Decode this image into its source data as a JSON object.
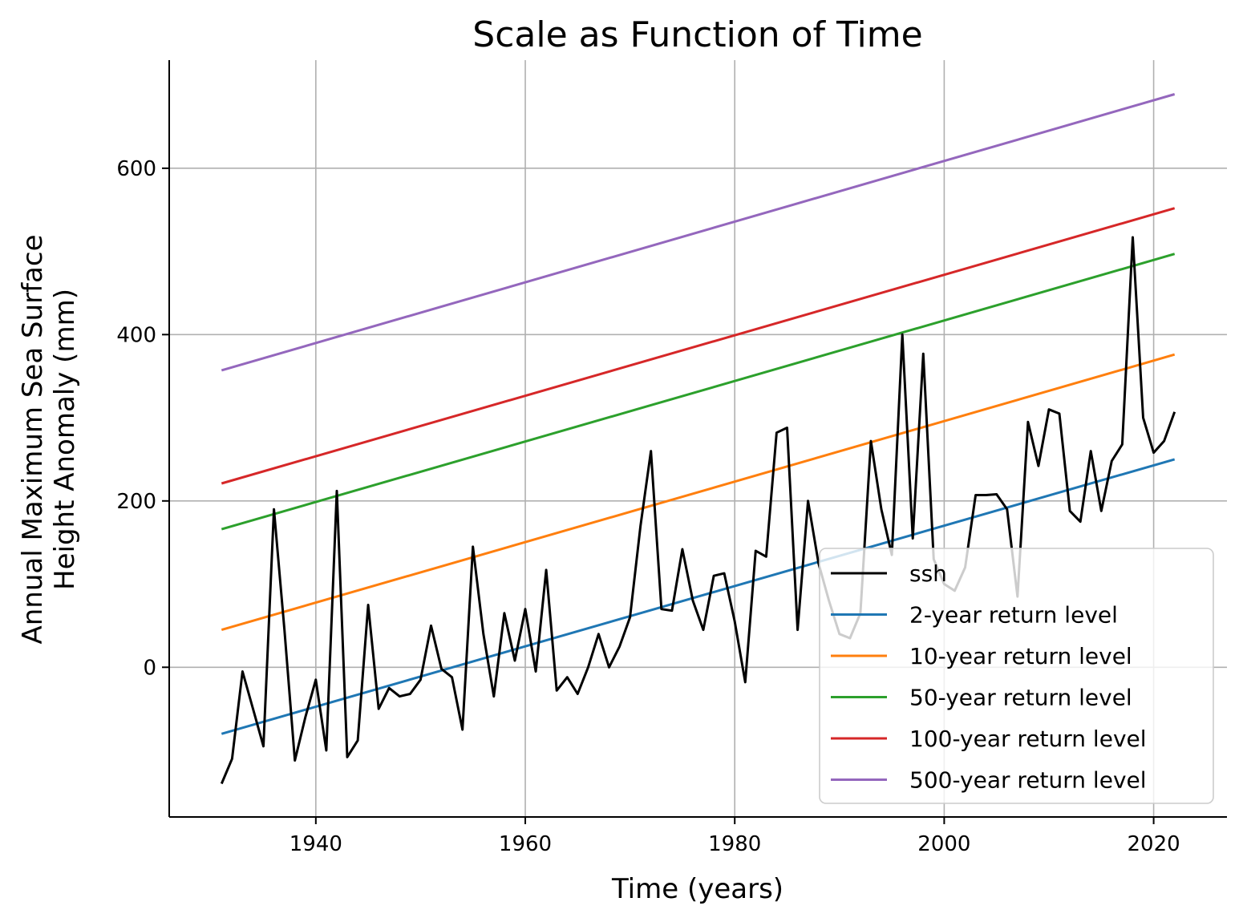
{
  "chart_data": {
    "type": "line",
    "title": "Scale as Function of Time",
    "xlabel": "Time (years)",
    "ylabel_lines": [
      "Annual Maximum Sea Surface",
      "Height Anomaly (mm)"
    ],
    "xlim": [
      1926,
      2027
    ],
    "ylim": [
      -180,
      730
    ],
    "xticks": [
      1940,
      1960,
      1980,
      2000,
      2020
    ],
    "yticks": [
      0,
      200,
      400,
      600
    ],
    "grid": true,
    "legend_position": "lower-right",
    "series": [
      {
        "name": "ssh",
        "color": "#000000",
        "x": [
          1931,
          1932,
          1933,
          1934,
          1935,
          1936,
          1937,
          1938,
          1939,
          1940,
          1941,
          1942,
          1943,
          1944,
          1945,
          1946,
          1947,
          1948,
          1949,
          1950,
          1951,
          1952,
          1953,
          1954,
          1955,
          1956,
          1957,
          1958,
          1959,
          1960,
          1961,
          1962,
          1963,
          1964,
          1965,
          1966,
          1967,
          1968,
          1969,
          1970,
          1971,
          1972,
          1973,
          1974,
          1975,
          1976,
          1977,
          1978,
          1979,
          1980,
          1981,
          1982,
          1983,
          1984,
          1985,
          1986,
          1987,
          1988,
          1989,
          1990,
          1991,
          1992,
          1993,
          1994,
          1995,
          1996,
          1997,
          1998,
          1999,
          2000,
          2001,
          2002,
          2003,
          2004,
          2005,
          2006,
          2007,
          2008,
          2009,
          2010,
          2011,
          2012,
          2013,
          2014,
          2015,
          2016,
          2017,
          2018,
          2019,
          2020,
          2021,
          2022
        ],
        "values": [
          -140,
          -110,
          -5,
          -50,
          -95,
          190,
          45,
          -112,
          -60,
          -15,
          -100,
          212,
          -108,
          -88,
          75,
          -50,
          -25,
          -35,
          -32,
          -15,
          50,
          -2,
          -12,
          -75,
          145,
          40,
          -35,
          65,
          8,
          70,
          -5,
          117,
          -28,
          -12,
          -32,
          0,
          40,
          0,
          25,
          60,
          170,
          260,
          70,
          68,
          142,
          80,
          45,
          110,
          113,
          55,
          -18,
          140,
          133,
          282,
          288,
          45,
          200,
          125,
          80,
          40,
          35,
          65,
          272,
          190,
          135,
          400,
          155,
          377,
          130,
          100,
          92,
          120,
          207,
          207,
          208,
          190,
          85,
          295,
          242,
          310,
          305,
          188,
          175,
          260,
          188,
          248,
          268,
          517,
          300,
          258,
          272,
          307
        ]
      },
      {
        "name": "2-year return level",
        "color": "#1f77b4",
        "x": [
          1931,
          2022
        ],
        "values": [
          -80,
          250
        ]
      },
      {
        "name": "10-year return level",
        "color": "#ff7f0e",
        "x": [
          1931,
          2022
        ],
        "values": [
          45,
          376
        ]
      },
      {
        "name": "50-year return level",
        "color": "#2ca02c",
        "x": [
          1931,
          2022
        ],
        "values": [
          166,
          497
        ]
      },
      {
        "name": "100-year return level",
        "color": "#d62728",
        "x": [
          1931,
          2022
        ],
        "values": [
          221,
          552
        ]
      },
      {
        "name": "500-year return level",
        "color": "#9467bd",
        "x": [
          1931,
          2022
        ],
        "values": [
          357,
          689
        ]
      }
    ]
  }
}
